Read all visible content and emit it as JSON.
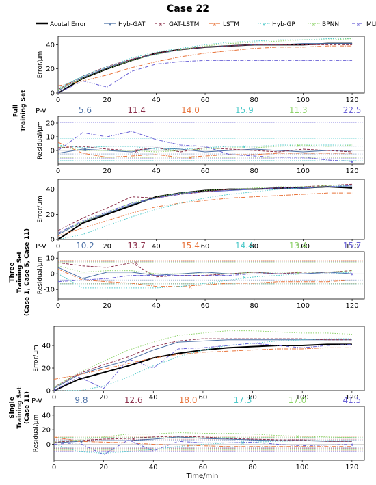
{
  "title": "Case 22",
  "x_axis_label": "Time/min",
  "legend": [
    {
      "name": "Acutal Error",
      "color": "#000000",
      "dash": "",
      "width": 2.2
    },
    {
      "name": "Hyb-GAT",
      "color": "#4a6fa5",
      "dash": "",
      "width": 1
    },
    {
      "name": "GAT-LSTM",
      "color": "#8b2f4a",
      "dash": "4 2",
      "width": 1
    },
    {
      "name": "LSTM",
      "color": "#e8743b",
      "dash": "6 2 1 2",
      "width": 1
    },
    {
      "name": "Hyb-GP",
      "color": "#4ec9c9",
      "dash": "1.5 2",
      "width": 1
    },
    {
      "name": "BPNN",
      "color": "#8ed36a",
      "dash": "1.5 2",
      "width": 1
    },
    {
      "name": "MLR",
      "color": "#6a62d6",
      "dash": "5 2 1 2",
      "width": 1
    }
  ],
  "groups": [
    {
      "label_lines": [
        "Full",
        "Training Set"
      ]
    },
    {
      "label_lines": [
        "Three",
        "Training Set",
        "(Case 1, Case 5, Case 11)"
      ]
    },
    {
      "label_lines": [
        "Single",
        "Training Set",
        "(Case 11)"
      ]
    }
  ],
  "pv_label": "P-V",
  "chart_data": [
    {
      "type": "line",
      "name": "full-error",
      "ylabel": "Error/μm",
      "xlim": [
        0,
        125
      ],
      "ylim": [
        0,
        47
      ],
      "xticks": [
        0,
        20,
        40,
        60,
        80,
        100,
        120
      ],
      "yticks": [
        0,
        20,
        40
      ],
      "x": [
        0,
        10,
        20,
        30,
        40,
        50,
        60,
        70,
        80,
        90,
        100,
        110,
        120
      ],
      "series": [
        {
          "name": "Acutal Error",
          "values": [
            0,
            12,
            20,
            27,
            33,
            36,
            38,
            39,
            40,
            40,
            40,
            41,
            41
          ]
        },
        {
          "name": "Hyb-GAT",
          "values": [
            2,
            13,
            21,
            28,
            32,
            36,
            38,
            39,
            40,
            40,
            41,
            41,
            41
          ]
        },
        {
          "name": "GAT-LSTM",
          "values": [
            3,
            14,
            22,
            28,
            33,
            36,
            38,
            39,
            40,
            40,
            40,
            40,
            40
          ]
        },
        {
          "name": "LSTM",
          "values": [
            6,
            10,
            15,
            21,
            26,
            30,
            33,
            35,
            37,
            38,
            38,
            39,
            39
          ]
        },
        {
          "name": "Hyb-GP",
          "values": [
            4,
            14,
            22,
            29,
            34,
            37,
            40,
            42,
            43,
            44,
            44,
            45,
            45
          ]
        },
        {
          "name": "BPNN",
          "values": [
            3,
            12,
            20,
            27,
            32,
            36,
            39,
            41,
            42,
            43,
            44,
            44,
            45
          ]
        },
        {
          "name": "MLR",
          "values": [
            0,
            10,
            5,
            18,
            24,
            26,
            27,
            27,
            27,
            27,
            27,
            27,
            27
          ]
        }
      ]
    },
    {
      "type": "line",
      "name": "full-residual",
      "ylabel": "Residual/μm",
      "xlim": [
        0,
        125
      ],
      "ylim": [
        -10,
        25
      ],
      "xticks": [
        0,
        20,
        40,
        60,
        80,
        100,
        120
      ],
      "yticks": [
        0,
        10,
        20
      ],
      "pv_values": [
        5.6,
        11.4,
        14.0,
        15.9,
        11.3,
        22.5
      ],
      "x": [
        0,
        10,
        20,
        30,
        40,
        50,
        60,
        70,
        80,
        90,
        100,
        110,
        120
      ],
      "series": [
        {
          "name": "Hyb-GAT",
          "values": [
            -2,
            1,
            0,
            -1,
            2,
            1,
            -1,
            0,
            1,
            0,
            -1,
            0,
            0
          ]
        },
        {
          "name": "GAT-LSTM",
          "values": [
            2,
            3,
            1,
            0,
            2,
            -1,
            2,
            1,
            0,
            -1,
            1,
            0,
            -1
          ]
        },
        {
          "name": "LSTM",
          "values": [
            6,
            -2,
            -5,
            -4,
            -3,
            -5,
            -4,
            -3,
            -3,
            -2,
            -2,
            -2,
            -2
          ]
        },
        {
          "name": "Hyb-GP",
          "values": [
            4,
            2,
            3,
            3,
            1,
            1,
            2,
            3,
            3,
            4,
            4,
            4,
            4
          ]
        },
        {
          "name": "BPNN",
          "values": [
            3,
            0,
            0,
            0,
            -1,
            0,
            1,
            2,
            2,
            3,
            4,
            3,
            4
          ]
        },
        {
          "name": "MLR",
          "values": [
            0,
            13,
            10,
            14,
            8,
            4,
            3,
            -3,
            -4,
            -5,
            -5,
            -7,
            -8
          ]
        }
      ]
    },
    {
      "type": "line",
      "name": "three-error",
      "ylabel": "Error/μm",
      "xlim": [
        0,
        125
      ],
      "ylim": [
        0,
        48
      ],
      "xticks": [
        0,
        20,
        40,
        60,
        80,
        100,
        120
      ],
      "yticks": [
        0,
        20,
        40
      ],
      "x": [
        0,
        10,
        20,
        30,
        40,
        50,
        60,
        70,
        80,
        90,
        100,
        110,
        120
      ],
      "series": [
        {
          "name": "Acutal Error",
          "values": [
            0,
            13,
            20,
            27,
            34,
            37,
            39,
            40,
            40,
            41,
            41,
            42,
            41
          ]
        },
        {
          "name": "Hyb-GAT",
          "values": [
            4,
            14,
            21,
            28,
            33,
            37,
            38,
            39,
            40,
            40,
            41,
            42,
            42
          ]
        },
        {
          "name": "GAT-LSTM",
          "values": [
            7,
            17,
            25,
            34,
            33,
            36,
            38,
            40,
            40,
            41,
            42,
            43,
            44
          ]
        },
        {
          "name": "LSTM",
          "values": [
            3,
            9,
            15,
            21,
            26,
            29,
            31,
            33,
            34,
            35,
            36,
            37,
            37
          ]
        },
        {
          "name": "Hyb-GP",
          "values": [
            0,
            4,
            11,
            18,
            24,
            29,
            33,
            36,
            38,
            40,
            41,
            42,
            43
          ]
        },
        {
          "name": "BPNN",
          "values": [
            5,
            14,
            22,
            29,
            34,
            37,
            39,
            40,
            41,
            42,
            42,
            43,
            43
          ]
        },
        {
          "name": "MLR",
          "values": [
            5,
            15,
            22,
            29,
            33,
            36,
            38,
            39,
            40,
            41,
            41,
            42,
            43
          ]
        }
      ]
    },
    {
      "type": "line",
      "name": "three-residual",
      "ylabel": "Residual/μm",
      "xlim": [
        0,
        125
      ],
      "ylim": [
        -16,
        14
      ],
      "xticks": [
        0,
        20,
        40,
        60,
        80,
        100,
        120
      ],
      "yticks": [
        -10,
        0,
        10
      ],
      "pv_values": [
        10.2,
        13.7,
        15.4,
        14.4,
        13.4,
        15.7
      ],
      "x": [
        0,
        10,
        20,
        30,
        40,
        50,
        60,
        70,
        80,
        90,
        100,
        110,
        120
      ],
      "series": [
        {
          "name": "Hyb-GAT",
          "values": [
            4,
            -3,
            1,
            1,
            -1,
            0,
            1,
            0,
            1,
            0,
            0,
            1,
            0
          ]
        },
        {
          "name": "GAT-LSTM",
          "values": [
            7,
            5,
            4,
            7,
            -2,
            -1,
            -1,
            0,
            1,
            0,
            1,
            1,
            2
          ]
        },
        {
          "name": "LSTM",
          "values": [
            3,
            -4,
            -5,
            -6,
            -8,
            -8,
            -7,
            -6,
            -6,
            -5,
            -5,
            -5,
            -4
          ]
        },
        {
          "name": "Hyb-GP",
          "values": [
            0,
            -9,
            -9,
            -9,
            -9,
            -8,
            -6,
            -4,
            -2,
            -1,
            0,
            0,
            1
          ]
        },
        {
          "name": "BPNN",
          "values": [
            5,
            1,
            2,
            2,
            0,
            0,
            0,
            0,
            1,
            1,
            1,
            1,
            2
          ]
        },
        {
          "name": "MLR",
          "values": [
            -5,
            -4,
            -3,
            -1,
            -1,
            -1,
            -1,
            -1,
            0,
            0,
            0,
            0,
            0
          ]
        }
      ]
    },
    {
      "type": "line",
      "name": "single-error",
      "ylabel": "Error/μm",
      "xlim": [
        0,
        125
      ],
      "ylim": [
        0,
        57
      ],
      "xticks": [
        0,
        20,
        40,
        60,
        80,
        100,
        120
      ],
      "yticks": [
        0,
        20,
        40
      ],
      "x": [
        0,
        10,
        20,
        30,
        40,
        50,
        60,
        70,
        80,
        90,
        100,
        110,
        120
      ],
      "series": [
        {
          "name": "Acutal Error",
          "values": [
            0,
            10,
            16,
            22,
            29,
            33,
            36,
            38,
            39,
            40,
            40,
            41,
            41
          ]
        },
        {
          "name": "Hyb-GAT",
          "values": [
            2,
            14,
            21,
            27,
            36,
            43,
            44,
            45,
            45,
            45,
            45,
            45,
            45
          ]
        },
        {
          "name": "GAT-LSTM",
          "values": [
            3,
            15,
            23,
            30,
            39,
            44,
            46,
            46,
            46,
            46,
            46,
            45,
            45
          ]
        },
        {
          "name": "LSTM",
          "values": [
            10,
            14,
            19,
            24,
            29,
            32,
            34,
            35,
            36,
            37,
            37,
            38,
            38
          ]
        },
        {
          "name": "Hyb-GP",
          "values": [
            0,
            0,
            4,
            12,
            22,
            30,
            36,
            40,
            42,
            44,
            45,
            46,
            46
          ]
        },
        {
          "name": "BPNN",
          "values": [
            3,
            16,
            26,
            36,
            43,
            49,
            51,
            53,
            53,
            52,
            51,
            51,
            50
          ]
        },
        {
          "name": "MLR",
          "values": [
            0,
            12,
            2,
            28,
            20,
            37,
            38,
            40,
            42,
            40,
            38,
            40,
            41
          ]
        }
      ]
    },
    {
      "type": "line",
      "name": "single-residual",
      "ylabel": "Residual/μm",
      "xlim": [
        0,
        125
      ],
      "ylim": [
        -22,
        52
      ],
      "xticks": [
        0,
        20,
        40,
        60,
        80,
        100,
        120
      ],
      "yticks": [
        0,
        20,
        40
      ],
      "pv_values": [
        9.8,
        12.6,
        18.0,
        17.3,
        17.0,
        41.5
      ],
      "x": [
        0,
        10,
        20,
        30,
        40,
        50,
        60,
        70,
        80,
        90,
        100,
        110,
        120
      ],
      "series": [
        {
          "name": "Hyb-GAT",
          "values": [
            2,
            4,
            5,
            5,
            7,
            10,
            8,
            7,
            6,
            5,
            5,
            4,
            4
          ]
        },
        {
          "name": "GAT-LSTM",
          "values": [
            3,
            5,
            7,
            8,
            10,
            11,
            10,
            8,
            7,
            6,
            6,
            4,
            4
          ]
        },
        {
          "name": "LSTM",
          "values": [
            10,
            4,
            3,
            2,
            0,
            -1,
            -2,
            -3,
            -3,
            -3,
            -3,
            -3,
            -3
          ]
        },
        {
          "name": "Hyb-GP",
          "values": [
            0,
            -10,
            -12,
            -10,
            -7,
            -3,
            0,
            2,
            3,
            4,
            5,
            5,
            5
          ]
        },
        {
          "name": "BPNN",
          "values": [
            3,
            6,
            10,
            14,
            14,
            16,
            15,
            15,
            14,
            12,
            11,
            10,
            9
          ]
        },
        {
          "name": "MLR",
          "values": [
            0,
            2,
            -14,
            6,
            -9,
            4,
            2,
            2,
            3,
            0,
            -2,
            -1,
            0
          ]
        }
      ]
    }
  ]
}
